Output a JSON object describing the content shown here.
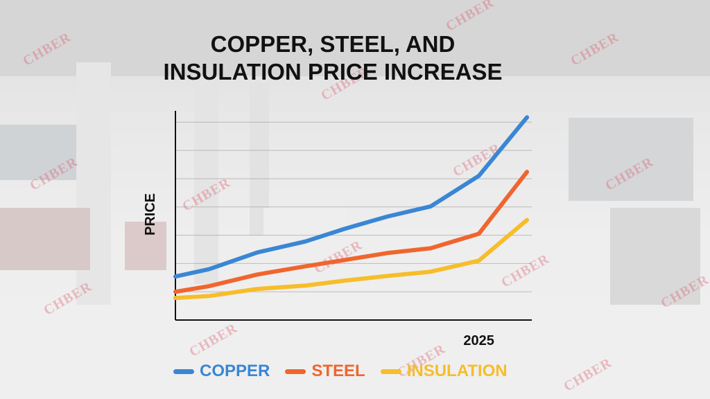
{
  "title_lines": [
    "COPPER, STEEL, AND",
    "INSULATION PRICE INCREASE"
  ],
  "watermark": "CHBER",
  "chart_data": {
    "type": "line",
    "title": "COPPER, STEEL, AND INSULATION PRICE INCREASE",
    "xlabel": "",
    "ylabel": "PRICE",
    "x_ticks": [
      {
        "value": 2025,
        "label": "2025"
      }
    ],
    "x": [
      2018.7,
      2019.4,
      2020.4,
      2021.4,
      2022.2,
      2023.1,
      2024.0,
      2025,
      2026
    ],
    "xlim": [
      2018.7,
      2026.1
    ],
    "ylim": [
      0,
      7.4
    ],
    "grid": true,
    "y_gridlines": [
      1,
      2,
      3,
      4,
      5,
      6,
      7
    ],
    "legend_position": "bottom",
    "series": [
      {
        "name": "COPPER",
        "color": "#3a86d4",
        "values": [
          1.54,
          1.8,
          2.39,
          2.78,
          3.22,
          3.66,
          4.02,
          5.1,
          7.17
        ]
      },
      {
        "name": "STEEL",
        "color": "#f0652e",
        "values": [
          1.0,
          1.2,
          1.61,
          1.9,
          2.12,
          2.37,
          2.54,
          3.05,
          5.24
        ]
      },
      {
        "name": "INSULATION",
        "color": "#f7bd2a",
        "values": [
          0.78,
          0.85,
          1.1,
          1.22,
          1.39,
          1.56,
          1.71,
          2.1,
          3.54
        ]
      }
    ]
  }
}
